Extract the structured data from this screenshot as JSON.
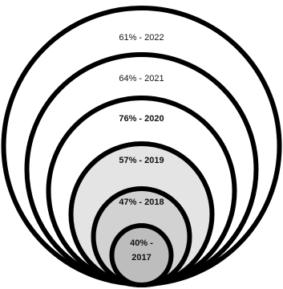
{
  "diagram": {
    "ring_color": "#000000",
    "fill_white": "#ffffff",
    "fill_light": "#e4e4e4",
    "fill_mid": "#d2d2d2",
    "fill_dark": "#bdbdbd",
    "rings": [
      {
        "label": "61% - 2022",
        "bold": false
      },
      {
        "label": "64% - 2021",
        "bold": false
      },
      {
        "label": "76% - 2020",
        "bold": true
      },
      {
        "label": "57% - 2019",
        "bold": true
      },
      {
        "label": "47% - 2018",
        "bold": true
      },
      {
        "label_line1": "40% -",
        "label_line2": "2017",
        "bold": true
      }
    ]
  }
}
